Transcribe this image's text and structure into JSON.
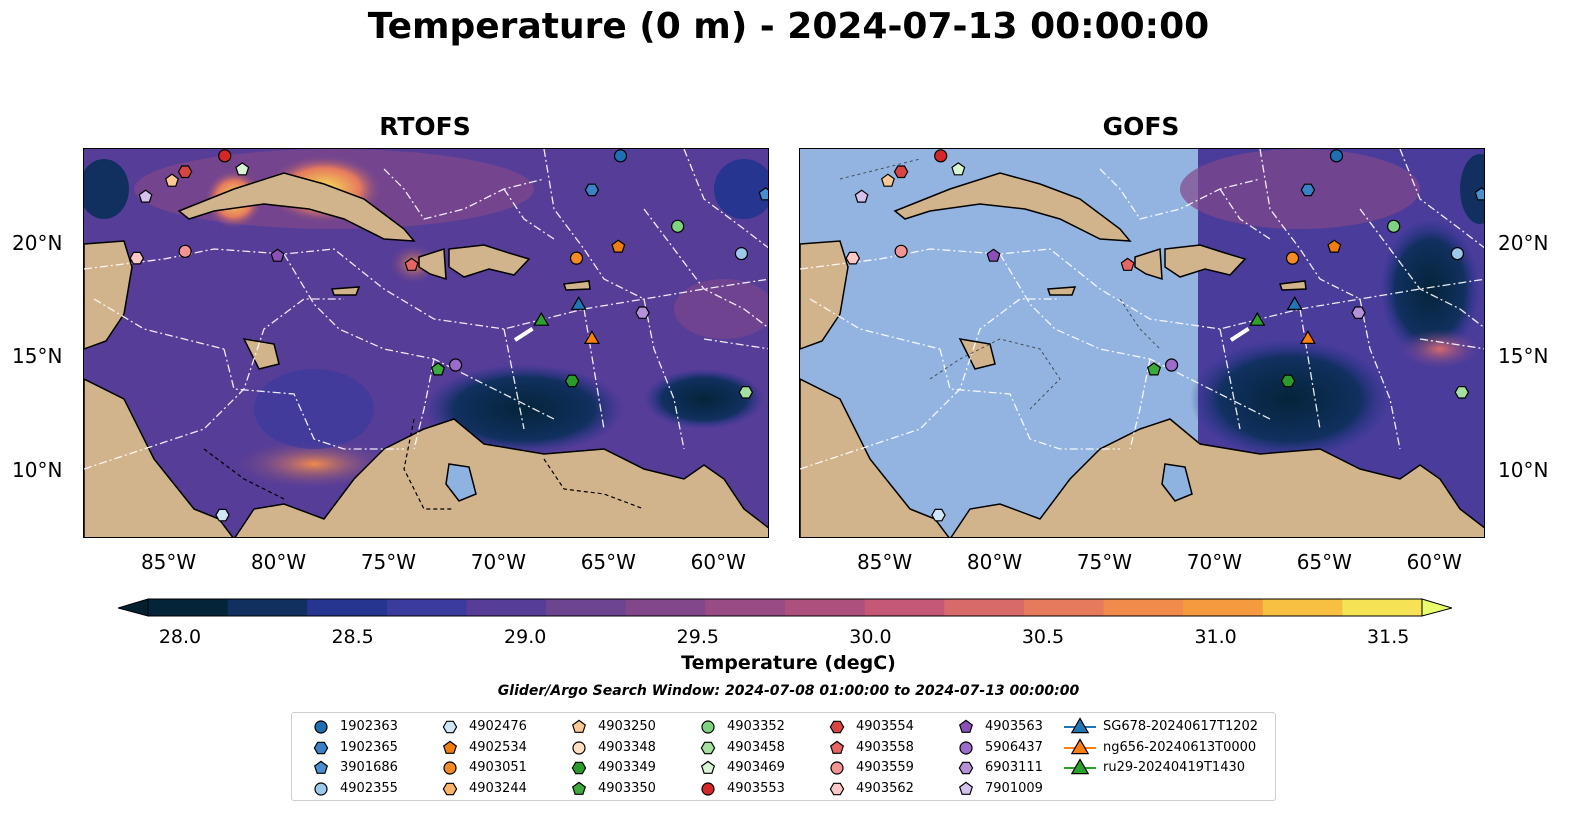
{
  "title": "Temperature (0 m) - 2024-07-13 00:00:00",
  "panels": [
    {
      "title": "RTOFS"
    },
    {
      "title": "GOFS"
    }
  ],
  "axes": {
    "x_ticks": [
      "85°W",
      "80°W",
      "75°W",
      "70°W",
      "65°W",
      "60°W"
    ],
    "y_ticks": [
      "20°N",
      "15°N",
      "10°N"
    ]
  },
  "colorbar": {
    "ticks": [
      "28.0",
      "28.5",
      "29.0",
      "29.5",
      "30.0",
      "30.5",
      "31.0",
      "31.5"
    ],
    "label": "Temperature (degC)",
    "colors": [
      "#04243a",
      "#11305f",
      "#253590",
      "#3b3a9d",
      "#563d98",
      "#6d448f",
      "#82478a",
      "#984b84",
      "#ad507d",
      "#c55876",
      "#d86a6a",
      "#e67a5d",
      "#f08b4c",
      "#f59a3e",
      "#f8c043",
      "#f5e255"
    ],
    "under_color": "#03202e",
    "over_color": "#eafd6d"
  },
  "subtitle": "Glider/Argo Search Window: 2024-07-08 01:00:00 to 2024-07-13 00:00:00",
  "legend": [
    {
      "label": "1902363",
      "marker": "circle",
      "color": "#1f6fb4"
    },
    {
      "label": "1902365",
      "marker": "hexagon",
      "color": "#3b82c4"
    },
    {
      "label": "3901686",
      "marker": "pentagon",
      "color": "#4a8fd0"
    },
    {
      "label": "4902355",
      "marker": "circle",
      "color": "#9ec9ec"
    },
    {
      "label": "4902476",
      "marker": "hexagon",
      "color": "#cfe6f7"
    },
    {
      "label": "4902534",
      "marker": "pentagon",
      "color": "#f07d10"
    },
    {
      "label": "4903051",
      "marker": "circle",
      "color": "#f58b25"
    },
    {
      "label": "4903244",
      "marker": "hexagon",
      "color": "#f9b36b"
    },
    {
      "label": "4903250",
      "marker": "pentagon",
      "color": "#fbc994"
    },
    {
      "label": "4903348",
      "marker": "circle",
      "color": "#fde0c2"
    },
    {
      "label": "4903349",
      "marker": "hexagon",
      "color": "#2a9a2a"
    },
    {
      "label": "4903350",
      "marker": "pentagon",
      "color": "#3daa3d"
    },
    {
      "label": "4903352",
      "marker": "circle",
      "color": "#7fd27f"
    },
    {
      "label": "4903458",
      "marker": "hexagon",
      "color": "#a6e0a0"
    },
    {
      "label": "4903469",
      "marker": "pentagon",
      "color": "#d7f5d2"
    },
    {
      "label": "4903553",
      "marker": "circle",
      "color": "#d62728"
    },
    {
      "label": "4903554",
      "marker": "hexagon",
      "color": "#d94545"
    },
    {
      "label": "4903558",
      "marker": "pentagon",
      "color": "#e86565"
    },
    {
      "label": "4903559",
      "marker": "circle",
      "color": "#f39494"
    },
    {
      "label": "4903562",
      "marker": "hexagon",
      "color": "#fbc7c7"
    },
    {
      "label": "4903563",
      "marker": "pentagon",
      "color": "#8b50b8"
    },
    {
      "label": "5906437",
      "marker": "circle",
      "color": "#9b6cc9"
    },
    {
      "label": "6903111",
      "marker": "hexagon",
      "color": "#b491d8"
    },
    {
      "label": "7901009",
      "marker": "pentagon",
      "color": "#d6c2ee"
    },
    {
      "label": "SG678-20240617T1202",
      "marker": "triangle-line",
      "color": "#1f77b4"
    },
    {
      "label": "ng656-20240613T0000",
      "marker": "triangle-line",
      "color": "#ff7f0e"
    },
    {
      "label": "ru29-20240419T1430",
      "marker": "triangle-line",
      "color": "#2ca02c"
    }
  ],
  "map_markers": [
    {
      "lon": -82.6,
      "lat": 23.9,
      "marker": "circle",
      "color": "#d62728"
    },
    {
      "lon": -84.4,
      "lat": 23.2,
      "marker": "hexagon",
      "color": "#d94545"
    },
    {
      "lon": -85.0,
      "lat": 22.8,
      "marker": "pentagon",
      "color": "#fbc994"
    },
    {
      "lon": -81.8,
      "lat": 23.3,
      "marker": "pentagon",
      "color": "#d7f5d2"
    },
    {
      "lon": -86.2,
      "lat": 22.1,
      "marker": "pentagon",
      "color": "#d6c2ee"
    },
    {
      "lon": -84.4,
      "lat": 19.7,
      "marker": "circle",
      "color": "#f39494"
    },
    {
      "lon": -86.6,
      "lat": 19.4,
      "marker": "hexagon",
      "color": "#fbc7c7"
    },
    {
      "lon": -80.2,
      "lat": 19.5,
      "marker": "pentagon",
      "color": "#8b50b8"
    },
    {
      "lon": -74.1,
      "lat": 19.1,
      "marker": "pentagon",
      "color": "#e86565"
    },
    {
      "lon": -64.6,
      "lat": 23.9,
      "marker": "circle",
      "color": "#1f6fb4"
    },
    {
      "lon": -65.9,
      "lat": 22.4,
      "marker": "hexagon",
      "color": "#3b82c4"
    },
    {
      "lon": -58.0,
      "lat": 22.2,
      "marker": "pentagon",
      "color": "#4a8fd0"
    },
    {
      "lon": -59.1,
      "lat": 19.6,
      "marker": "circle",
      "color": "#9ec9ec"
    },
    {
      "lon": -62.0,
      "lat": 20.8,
      "marker": "circle",
      "color": "#7fd27f"
    },
    {
      "lon": -64.7,
      "lat": 19.9,
      "marker": "pentagon",
      "color": "#f07d10"
    },
    {
      "lon": -66.6,
      "lat": 19.4,
      "marker": "circle",
      "color": "#f58b25"
    },
    {
      "lon": -63.6,
      "lat": 17.0,
      "marker": "hexagon",
      "color": "#b491d8"
    },
    {
      "lon": -72.1,
      "lat": 14.7,
      "marker": "circle",
      "color": "#9b6cc9"
    },
    {
      "lon": -72.9,
      "lat": 14.5,
      "marker": "pentagon",
      "color": "#3daa3d"
    },
    {
      "lon": -66.8,
      "lat": 14.0,
      "marker": "hexagon",
      "color": "#2a9a2a"
    },
    {
      "lon": -58.9,
      "lat": 13.5,
      "marker": "hexagon",
      "color": "#a6e0a0"
    },
    {
      "lon": -82.7,
      "lat": 8.1,
      "marker": "hexagon",
      "color": "#cfe6f7"
    },
    {
      "lon": -66.5,
      "lat": 17.4,
      "marker": "triangle",
      "color": "#1f77b4"
    },
    {
      "lon": -65.9,
      "lat": 15.9,
      "marker": "triangle",
      "color": "#ff7f0e"
    },
    {
      "lon": -68.2,
      "lat": 16.7,
      "marker": "triangle",
      "color": "#2ca02c"
    }
  ]
}
